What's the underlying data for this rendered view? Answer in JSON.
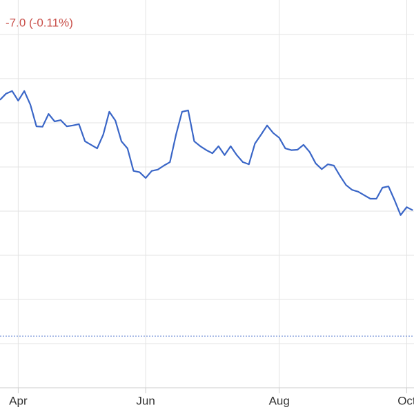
{
  "chart_data": {
    "type": "line",
    "change": "-7.0 (-0.11%)",
    "change_color": "#c9504a",
    "x": [
      0,
      1,
      2,
      3,
      4,
      5,
      6,
      7,
      8,
      9,
      10,
      11,
      12,
      13,
      14,
      15,
      16,
      17,
      18,
      19,
      20,
      21,
      22,
      23,
      24,
      25,
      26,
      27,
      28,
      29,
      30,
      31,
      32,
      33,
      34,
      35,
      36,
      37,
      38,
      39,
      40,
      41,
      42,
      43,
      44,
      45,
      46,
      47,
      48,
      49,
      50,
      51,
      52,
      53,
      54,
      55,
      56,
      57,
      58,
      59,
      60,
      61,
      62,
      63,
      64,
      65,
      66,
      67,
      68
    ],
    "series": [
      {
        "color": "#3a66c7",
        "values": [
          6.52,
          6.66,
          6.72,
          6.5,
          6.72,
          6.41,
          5.92,
          5.91,
          6.2,
          6.03,
          6.06,
          5.92,
          5.94,
          5.97,
          5.58,
          5.5,
          5.42,
          5.73,
          6.25,
          6.05,
          5.58,
          5.42,
          4.91,
          4.88,
          4.75,
          4.91,
          4.94,
          5.03,
          5.11,
          5.73,
          6.25,
          6.28,
          5.58,
          5.47,
          5.38,
          5.31,
          5.47,
          5.27,
          5.47,
          5.27,
          5.11,
          5.06,
          5.53,
          5.73,
          5.94,
          5.77,
          5.66,
          5.42,
          5.38,
          5.39,
          5.5,
          5.34,
          5.08,
          4.95,
          5.06,
          5.03,
          4.8,
          4.59,
          4.48,
          4.44,
          4.36,
          4.28,
          4.28,
          4.53,
          4.56,
          4.25,
          3.91,
          4.09,
          4.02
        ]
      }
    ],
    "reference_line": 1.17,
    "xlim": [
      0,
      68.2
    ],
    "xticks": [
      {
        "value": 3,
        "label": "Apr"
      },
      {
        "value": 24,
        "label": "Jun"
      },
      {
        "value": 46,
        "label": "Aug"
      },
      {
        "value": 67,
        "label": "Oct"
      }
    ],
    "ylim": [
      0,
      8.78
    ],
    "yticks": [
      1,
      2,
      3,
      4,
      5,
      6,
      7,
      8
    ],
    "grid": true
  }
}
